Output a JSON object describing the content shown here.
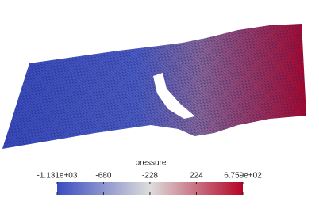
{
  "colorbar": {
    "title": "pressure",
    "range": [
      -1131,
      675.9
    ],
    "ticks": [
      {
        "value": -1131,
        "label": "-1.131e+03"
      },
      -680,
      -228,
      224,
      {
        "value": 675.9,
        "label": "6.759e+02"
      }
    ],
    "colors": [
      "#3b4cc0",
      "#dddddd",
      "#b40426"
    ]
  }
}
